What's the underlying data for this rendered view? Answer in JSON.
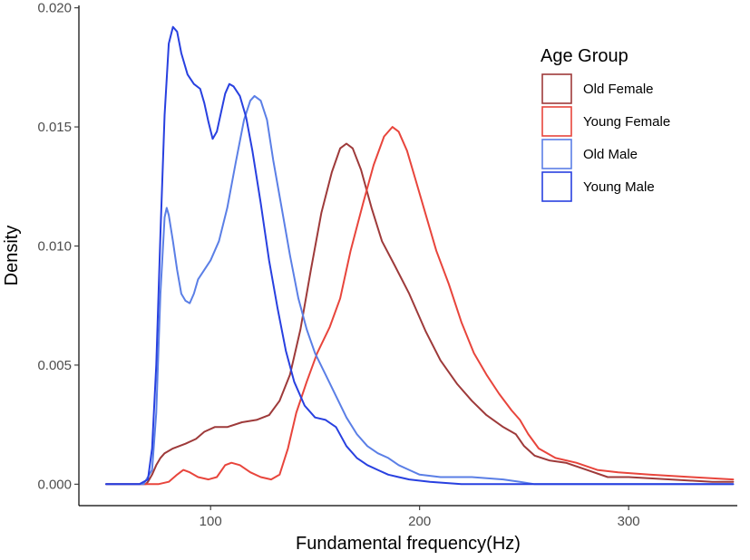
{
  "chart_data": {
    "type": "line",
    "title": "",
    "xlabel": "Fundamental frequency(Hz)",
    "ylabel": "Density",
    "xlim": [
      37,
      352
    ],
    "ylim": [
      -0.0009,
      0.0201
    ],
    "x_ticks": [
      100,
      200,
      300
    ],
    "y_ticks": [
      0.0,
      0.005,
      0.01,
      0.015,
      0.02
    ],
    "y_tick_labels": [
      "0.000",
      "0.005",
      "0.010",
      "0.015",
      "0.020"
    ],
    "grid": false,
    "legend": {
      "title": "Age Group",
      "position": "top-right",
      "entries": [
        "Old Female",
        "Young Female",
        "Old Male",
        "Young Male"
      ]
    },
    "series": [
      {
        "name": "Old Female",
        "color": "#9e3a3a",
        "points": [
          [
            50,
            0
          ],
          [
            65,
            0
          ],
          [
            69,
            0
          ],
          [
            70,
            0.0001
          ],
          [
            72,
            0.0004
          ],
          [
            74,
            0.0008
          ],
          [
            76,
            0.0011
          ],
          [
            78,
            0.0013
          ],
          [
            82,
            0.0015
          ],
          [
            88,
            0.0017
          ],
          [
            93,
            0.0019
          ],
          [
            97,
            0.0022
          ],
          [
            102,
            0.0024
          ],
          [
            108,
            0.0024
          ],
          [
            115,
            0.0026
          ],
          [
            122,
            0.0027
          ],
          [
            128,
            0.0029
          ],
          [
            133,
            0.0035
          ],
          [
            138,
            0.0046
          ],
          [
            143,
            0.0065
          ],
          [
            148,
            0.009
          ],
          [
            153,
            0.0114
          ],
          [
            158,
            0.0131
          ],
          [
            162,
            0.0141
          ],
          [
            165,
            0.0143
          ],
          [
            168,
            0.0141
          ],
          [
            172,
            0.0132
          ],
          [
            177,
            0.0116
          ],
          [
            182,
            0.0102
          ],
          [
            188,
            0.0092
          ],
          [
            195,
            0.008
          ],
          [
            203,
            0.0064
          ],
          [
            210,
            0.0052
          ],
          [
            218,
            0.0042
          ],
          [
            225,
            0.0035
          ],
          [
            232,
            0.0029
          ],
          [
            240,
            0.0024
          ],
          [
            246,
            0.0021
          ],
          [
            250,
            0.0016
          ],
          [
            255,
            0.0012
          ],
          [
            262,
            0.001
          ],
          [
            270,
            0.0009
          ],
          [
            280,
            0.0006
          ],
          [
            290,
            0.0003
          ],
          [
            300,
            0.0003
          ],
          [
            320,
            0.0002
          ],
          [
            340,
            0.0001
          ],
          [
            350,
            0.0001
          ]
        ]
      },
      {
        "name": "Young Female",
        "color": "#e8453c",
        "points": [
          [
            50,
            0
          ],
          [
            70,
            0
          ],
          [
            75,
            0
          ],
          [
            80,
            0.0001
          ],
          [
            84,
            0.0004
          ],
          [
            87,
            0.0006
          ],
          [
            90,
            0.0005
          ],
          [
            94,
            0.0003
          ],
          [
            99,
            0.0002
          ],
          [
            103,
            0.0003
          ],
          [
            107,
            0.0008
          ],
          [
            110,
            0.0009
          ],
          [
            114,
            0.0008
          ],
          [
            119,
            0.0005
          ],
          [
            124,
            0.0003
          ],
          [
            129,
            0.0002
          ],
          [
            133,
            0.0004
          ],
          [
            137,
            0.0015
          ],
          [
            141,
            0.003
          ],
          [
            146,
            0.0043
          ],
          [
            151,
            0.0055
          ],
          [
            157,
            0.0066
          ],
          [
            162,
            0.0078
          ],
          [
            167,
            0.0098
          ],
          [
            173,
            0.0118
          ],
          [
            178,
            0.0134
          ],
          [
            183,
            0.0146
          ],
          [
            187,
            0.015
          ],
          [
            190,
            0.0148
          ],
          [
            194,
            0.014
          ],
          [
            198,
            0.0128
          ],
          [
            203,
            0.0113
          ],
          [
            208,
            0.0098
          ],
          [
            214,
            0.0084
          ],
          [
            220,
            0.0068
          ],
          [
            226,
            0.0055
          ],
          [
            232,
            0.0046
          ],
          [
            238,
            0.0038
          ],
          [
            244,
            0.0031
          ],
          [
            248,
            0.0027
          ],
          [
            252,
            0.0021
          ],
          [
            257,
            0.0015
          ],
          [
            265,
            0.0011
          ],
          [
            275,
            0.0009
          ],
          [
            285,
            0.0006
          ],
          [
            295,
            0.0005
          ],
          [
            310,
            0.0004
          ],
          [
            330,
            0.0003
          ],
          [
            350,
            0.0002
          ]
        ]
      },
      {
        "name": "Old Male",
        "color": "#5b7fe6",
        "points": [
          [
            50,
            0
          ],
          [
            68,
            0
          ],
          [
            72,
            0.0006
          ],
          [
            74,
            0.003
          ],
          [
            76,
            0.008
          ],
          [
            78,
            0.0112
          ],
          [
            79,
            0.0116
          ],
          [
            80,
            0.0113
          ],
          [
            82,
            0.0102
          ],
          [
            84,
            0.009
          ],
          [
            86,
            0.008
          ],
          [
            88,
            0.0077
          ],
          [
            90,
            0.0076
          ],
          [
            92,
            0.008
          ],
          [
            94,
            0.0086
          ],
          [
            97,
            0.009
          ],
          [
            100,
            0.0094
          ],
          [
            104,
            0.0102
          ],
          [
            108,
            0.0116
          ],
          [
            112,
            0.0135
          ],
          [
            116,
            0.0153
          ],
          [
            119,
            0.0161
          ],
          [
            121,
            0.0163
          ],
          [
            124,
            0.0161
          ],
          [
            127,
            0.0153
          ],
          [
            130,
            0.0136
          ],
          [
            134,
            0.0116
          ],
          [
            138,
            0.0096
          ],
          [
            142,
            0.0078
          ],
          [
            146,
            0.0065
          ],
          [
            150,
            0.0055
          ],
          [
            155,
            0.0046
          ],
          [
            160,
            0.0037
          ],
          [
            165,
            0.0028
          ],
          [
            170,
            0.0021
          ],
          [
            175,
            0.0016
          ],
          [
            180,
            0.0013
          ],
          [
            185,
            0.0011
          ],
          [
            190,
            0.0008
          ],
          [
            195,
            0.0006
          ],
          [
            200,
            0.0004
          ],
          [
            210,
            0.0003
          ],
          [
            225,
            0.0003
          ],
          [
            240,
            0.0002
          ],
          [
            248,
            0.0001
          ],
          [
            255,
            0
          ],
          [
            350,
            0
          ]
        ]
      },
      {
        "name": "Young Male",
        "color": "#2840e0",
        "points": [
          [
            50,
            0
          ],
          [
            66,
            0
          ],
          [
            70,
            0.0002
          ],
          [
            72,
            0.0015
          ],
          [
            74,
            0.005
          ],
          [
            76,
            0.0105
          ],
          [
            78,
            0.0155
          ],
          [
            80,
            0.0185
          ],
          [
            82,
            0.0192
          ],
          [
            84,
            0.019
          ],
          [
            86,
            0.0181
          ],
          [
            89,
            0.0172
          ],
          [
            92,
            0.0168
          ],
          [
            95,
            0.0166
          ],
          [
            97,
            0.016
          ],
          [
            99,
            0.0152
          ],
          [
            101,
            0.0145
          ],
          [
            103,
            0.0148
          ],
          [
            105,
            0.0156
          ],
          [
            107,
            0.0164
          ],
          [
            109,
            0.0168
          ],
          [
            111,
            0.0167
          ],
          [
            114,
            0.0163
          ],
          [
            117,
            0.0154
          ],
          [
            120,
            0.014
          ],
          [
            124,
            0.0118
          ],
          [
            128,
            0.0094
          ],
          [
            132,
            0.0074
          ],
          [
            136,
            0.0056
          ],
          [
            140,
            0.0043
          ],
          [
            145,
            0.0033
          ],
          [
            150,
            0.0028
          ],
          [
            155,
            0.0027
          ],
          [
            160,
            0.0024
          ],
          [
            165,
            0.0016
          ],
          [
            170,
            0.0011
          ],
          [
            175,
            0.0008
          ],
          [
            180,
            0.0006
          ],
          [
            185,
            0.0004
          ],
          [
            190,
            0.0003
          ],
          [
            195,
            0.0002
          ],
          [
            205,
            0.0001
          ],
          [
            220,
            0
          ],
          [
            350,
            0
          ]
        ]
      }
    ]
  }
}
